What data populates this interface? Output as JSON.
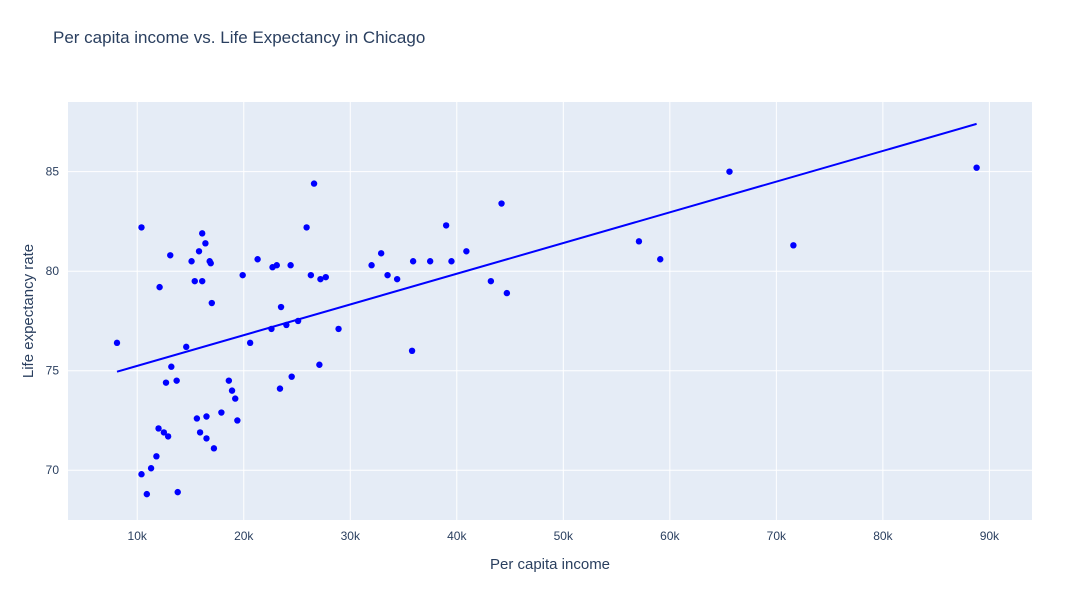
{
  "chart_data": {
    "type": "scatter",
    "title": "Per capita income vs. Life Expectancy in Chicago",
    "xlabel": "Per capita income",
    "ylabel": "Life expectancy rate",
    "xlim": [
      3500,
      94000
    ],
    "ylim": [
      67.5,
      88.5
    ],
    "x_ticks": [
      10000,
      20000,
      30000,
      40000,
      50000,
      60000,
      70000,
      80000,
      90000
    ],
    "x_tick_labels": [
      "10k",
      "20k",
      "30k",
      "40k",
      "50k",
      "60k",
      "70k",
      "80k",
      "90k"
    ],
    "y_ticks": [
      70,
      75,
      80,
      85
    ],
    "y_tick_labels": [
      "70",
      "75",
      "80",
      "85"
    ],
    "grid": true,
    "marker_color": "#0000ff",
    "plot_background": "#e5ecf6",
    "points": [
      [
        8100,
        76.4
      ],
      [
        10400,
        82.2
      ],
      [
        10400,
        69.8
      ],
      [
        10900,
        68.8
      ],
      [
        11300,
        70.1
      ],
      [
        11800,
        70.7
      ],
      [
        12000,
        72.1
      ],
      [
        12100,
        79.2
      ],
      [
        12500,
        71.9
      ],
      [
        12700,
        74.4
      ],
      [
        12900,
        71.7
      ],
      [
        13100,
        80.8
      ],
      [
        13200,
        75.2
      ],
      [
        13700,
        74.5
      ],
      [
        13800,
        68.9
      ],
      [
        14600,
        76.2
      ],
      [
        15100,
        80.5
      ],
      [
        15400,
        79.5
      ],
      [
        15600,
        72.6
      ],
      [
        15800,
        81.0
      ],
      [
        15900,
        71.9
      ],
      [
        16100,
        81.9
      ],
      [
        16100,
        79.5
      ],
      [
        16400,
        81.4
      ],
      [
        16500,
        72.7
      ],
      [
        16500,
        71.6
      ],
      [
        16800,
        80.5
      ],
      [
        16900,
        80.4
      ],
      [
        17000,
        78.4
      ],
      [
        17200,
        71.1
      ],
      [
        17900,
        72.9
      ],
      [
        18600,
        74.5
      ],
      [
        18900,
        74.0
      ],
      [
        19200,
        73.6
      ],
      [
        19400,
        72.5
      ],
      [
        19900,
        79.8
      ],
      [
        20600,
        76.4
      ],
      [
        21300,
        80.6
      ],
      [
        22600,
        77.1
      ],
      [
        22700,
        80.2
      ],
      [
        23100,
        80.3
      ],
      [
        23400,
        74.1
      ],
      [
        23500,
        78.2
      ],
      [
        24000,
        77.3
      ],
      [
        24400,
        80.3
      ],
      [
        24500,
        74.7
      ],
      [
        25100,
        77.5
      ],
      [
        25900,
        82.2
      ],
      [
        26300,
        79.8
      ],
      [
        26600,
        84.4
      ],
      [
        27100,
        75.3
      ],
      [
        27200,
        79.6
      ],
      [
        27700,
        79.7
      ],
      [
        28900,
        77.1
      ],
      [
        32000,
        80.3
      ],
      [
        32900,
        80.9
      ],
      [
        33500,
        79.8
      ],
      [
        34400,
        79.6
      ],
      [
        35800,
        76.0
      ],
      [
        35900,
        80.5
      ],
      [
        37500,
        80.5
      ],
      [
        39000,
        82.3
      ],
      [
        39500,
        80.5
      ],
      [
        40900,
        81.0
      ],
      [
        43200,
        79.5
      ],
      [
        44200,
        83.4
      ],
      [
        44700,
        78.9
      ],
      [
        57100,
        81.5
      ],
      [
        59100,
        80.6
      ],
      [
        65600,
        85.0
      ],
      [
        71600,
        81.3
      ],
      [
        88800,
        85.2
      ]
    ],
    "trendline": {
      "x": [
        8100,
        88800
      ],
      "y": [
        74.95,
        87.4
      ],
      "color": "#0000ff"
    }
  }
}
